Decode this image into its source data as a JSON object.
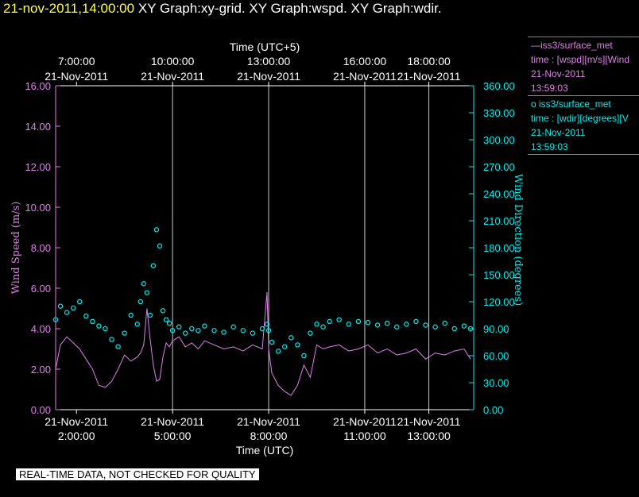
{
  "header": {
    "timestamp": "21-nov-2011,14:00:00",
    "graphs": "XY Graph:xy-grid.  XY Graph:wspd.  XY Graph:wdir."
  },
  "legend": [
    {
      "line1": "iss3/surface_met",
      "prefix": "—",
      "line2": "time : [wspd][m/s][Wind",
      "line3": "21-Nov-2011",
      "line4": "13:59:03",
      "color": "#e080e8"
    },
    {
      "line1": "iss3/surface_met",
      "prefix": "o ",
      "line2": "time : [wdir][degrees][V",
      "line3": "21-Nov-2011",
      "line4": "13:59:03",
      "color": "#00f0f0"
    }
  ],
  "footer_notice": "REAL-TIME DATA, NOT CHECKED FOR QUALITY",
  "chart_data": {
    "type": "line",
    "x_range_utc_hours": [
      1.35,
      14.4
    ],
    "x_bottom": {
      "title": "Time (UTC)",
      "ticks": [
        {
          "t": 2,
          "date": "21-Nov-2011",
          "time": "2:00:00"
        },
        {
          "t": 5,
          "date": "21-Nov-2011",
          "time": "5:00:00"
        },
        {
          "t": 8,
          "date": "21-Nov-2011",
          "time": "8:00:00"
        },
        {
          "t": 11,
          "date": "21-Nov-2011",
          "time": "11:00:00"
        },
        {
          "t": 13,
          "date": "21-Nov-2011",
          "time": "13:00:00"
        }
      ]
    },
    "x_top": {
      "title": "Time (UTC+5)",
      "ticks": [
        {
          "t": 2,
          "date": "21-Nov-2011",
          "time": "7:00:00"
        },
        {
          "t": 5,
          "date": "21-Nov-2011",
          "time": "10:00:00"
        },
        {
          "t": 8,
          "date": "21-Nov-2011",
          "time": "13:00:00"
        },
        {
          "t": 11,
          "date": "21-Nov-2011",
          "time": "16:00:00"
        },
        {
          "t": 13,
          "date": "21-Nov-2011",
          "time": "18:00:00"
        }
      ]
    },
    "y_left": {
      "label": "Wind Speed (m/s)",
      "range": [
        0,
        16
      ],
      "ticks": [
        "0.00",
        "2.00",
        "4.00",
        "6.00",
        "8.00",
        "10.00",
        "12.00",
        "14.00",
        "16.00"
      ]
    },
    "y_right": {
      "label": "Wind Direction (degrees)",
      "range": [
        0,
        360
      ],
      "ticks": [
        "0.00",
        "30.00",
        "60.00",
        "90.00",
        "120.00",
        "150.00",
        "180.00",
        "210.00",
        "240.00",
        "270.00",
        "300.00",
        "330.00",
        "360.00"
      ]
    },
    "grid_vertical_at": [
      5,
      8,
      11,
      13
    ],
    "series": [
      {
        "name": "iss3/surface_met",
        "variable": "wspd",
        "axis": "left",
        "style": "line",
        "color": "#e080e8",
        "x": [
          1.35,
          1.5,
          1.7,
          1.9,
          2.1,
          2.3,
          2.5,
          2.7,
          2.9,
          3.1,
          3.3,
          3.5,
          3.7,
          3.9,
          4.0,
          4.1,
          4.2,
          4.3,
          4.4,
          4.5,
          4.6,
          4.7,
          4.8,
          4.9,
          5.0,
          5.2,
          5.4,
          5.6,
          5.8,
          6.0,
          6.3,
          6.6,
          6.9,
          7.2,
          7.5,
          7.8,
          7.95,
          8.0,
          8.1,
          8.3,
          8.5,
          8.7,
          8.9,
          9.1,
          9.3,
          9.5,
          9.7,
          9.9,
          10.2,
          10.5,
          10.8,
          11.1,
          11.4,
          11.7,
          12.0,
          12.3,
          12.6,
          12.9,
          13.2,
          13.5,
          13.8,
          14.1,
          14.3
        ],
        "y": [
          2.0,
          3.2,
          3.6,
          3.3,
          3.0,
          2.5,
          2.0,
          1.2,
          1.1,
          1.4,
          2.0,
          2.7,
          2.4,
          2.6,
          2.8,
          3.2,
          5.0,
          3.5,
          2.2,
          1.4,
          1.5,
          2.6,
          3.3,
          3.1,
          3.4,
          3.6,
          3.1,
          3.3,
          3.0,
          3.4,
          3.2,
          3.0,
          3.1,
          2.9,
          3.2,
          3.0,
          5.8,
          3.0,
          1.8,
          1.2,
          0.9,
          0.7,
          1.2,
          2.2,
          1.6,
          3.2,
          3.0,
          3.1,
          3.2,
          2.9,
          3.0,
          3.2,
          2.8,
          3.0,
          2.7,
          2.8,
          3.0,
          2.5,
          2.8,
          2.7,
          2.9,
          3.0,
          2.5
        ]
      },
      {
        "name": "iss3/surface_met",
        "variable": "wdir",
        "axis": "right",
        "style": "scatter",
        "color": "#00f0f0",
        "x": [
          1.35,
          1.5,
          1.7,
          1.9,
          2.1,
          2.3,
          2.5,
          2.7,
          2.9,
          3.1,
          3.3,
          3.5,
          3.7,
          3.9,
          4.0,
          4.1,
          4.2,
          4.3,
          4.4,
          4.5,
          4.6,
          4.7,
          4.8,
          4.9,
          5.0,
          5.2,
          5.4,
          5.6,
          5.8,
          6.0,
          6.3,
          6.6,
          6.9,
          7.2,
          7.5,
          7.8,
          7.95,
          8.0,
          8.1,
          8.3,
          8.5,
          8.7,
          8.9,
          9.1,
          9.3,
          9.5,
          9.7,
          9.9,
          10.2,
          10.5,
          10.8,
          11.1,
          11.4,
          11.7,
          12.0,
          12.3,
          12.6,
          12.9,
          13.2,
          13.5,
          13.8,
          14.1,
          14.3
        ],
        "y": [
          100,
          115,
          108,
          113,
          120,
          104,
          98,
          93,
          90,
          78,
          70,
          85,
          105,
          95,
          120,
          140,
          130,
          105,
          160,
          200,
          182,
          110,
          100,
          96,
          88,
          92,
          85,
          90,
          88,
          93,
          88,
          86,
          92,
          88,
          85,
          90,
          95,
          88,
          75,
          65,
          70,
          80,
          72,
          60,
          85,
          95,
          92,
          98,
          100,
          95,
          98,
          97,
          94,
          96,
          92,
          95,
          98,
          94,
          92,
          96,
          90,
          93,
          90
        ]
      }
    ]
  }
}
